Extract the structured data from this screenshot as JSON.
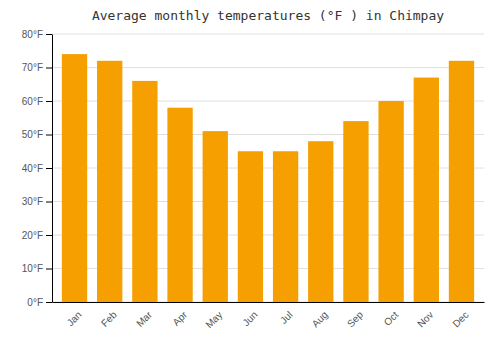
{
  "chart_data": {
    "type": "bar",
    "title": "Average monthly temperatures (°F ) in Chimpay",
    "categories": [
      "Jan",
      "Feb",
      "Mar",
      "Apr",
      "May",
      "Jun",
      "Jul",
      "Aug",
      "Sep",
      "Oct",
      "Nov",
      "Dec"
    ],
    "values": [
      74,
      72,
      66,
      58,
      51,
      45,
      45,
      48,
      54,
      60,
      67,
      72
    ],
    "color": "#F5A000",
    "ylim": [
      0,
      80
    ],
    "yticks": [
      {
        "value": 0,
        "label": "0°F"
      },
      {
        "value": 10,
        "label": "10°F"
      },
      {
        "value": 20,
        "label": "20°F"
      },
      {
        "value": 30,
        "label": "30°F"
      },
      {
        "value": 40,
        "label": "40°F"
      },
      {
        "value": 50,
        "label": "50°F"
      },
      {
        "value": 60,
        "label": "60°F"
      },
      {
        "value": 70,
        "label": "70°F"
      },
      {
        "value": 80,
        "label": "80°F"
      }
    ],
    "grid": true
  }
}
